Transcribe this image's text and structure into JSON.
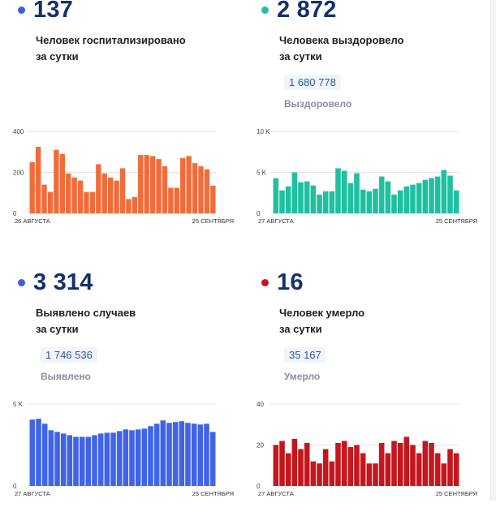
{
  "panels": [
    {
      "value": "137",
      "caption_line1": "Человек госпитализировано",
      "caption_line2": "за сутки",
      "total": "",
      "total_label": "",
      "dot_color": "#3f5ce0",
      "bar_color": "#f26b3a",
      "chart_data": {
        "type": "bar",
        "title": "",
        "yticks": [
          "400",
          "200",
          "0"
        ],
        "ylim": [
          0,
          400
        ],
        "x_start": "26 АВГУСТА",
        "x_end": "25 СЕНТЯБРЯ",
        "values": [
          250,
          325,
          140,
          105,
          310,
          290,
          195,
          175,
          160,
          105,
          105,
          240,
          195,
          175,
          160,
          220,
          70,
          80,
          285,
          285,
          280,
          265,
          230,
          125,
          125,
          270,
          280,
          245,
          230,
          215,
          135
        ]
      }
    },
    {
      "value": "2 872",
      "caption_line1": "Человека выздоровело",
      "caption_line2": "за сутки",
      "total": "1 680 778",
      "total_label": "Выздоровело",
      "dot_color": "#1fc0a0",
      "bar_color": "#1fc0a0",
      "chart_data": {
        "type": "bar",
        "title": "",
        "yticks": [
          "10 K",
          "5 K",
          "0"
        ],
        "ylim": [
          0,
          10000
        ],
        "x_start": "27 АВГУСТА",
        "x_end": "25 СЕНТЯБРЯ",
        "values": [
          4300,
          2800,
          3300,
          5000,
          3800,
          3900,
          3400,
          2300,
          2700,
          2700,
          5500,
          5200,
          3700,
          4900,
          2900,
          2700,
          3000,
          4500,
          3900,
          2300,
          2800,
          3300,
          3500,
          3700,
          4100,
          4300,
          4500,
          5300,
          4600,
          2800
        ]
      }
    },
    {
      "value": "3 314",
      "caption_line1": "Выявлено случаев",
      "caption_line2": "за сутки",
      "total": "1 746 536",
      "total_label": "Выявлено",
      "dot_color": "#3f5ce0",
      "bar_color": "#3f64e6",
      "chart_data": {
        "type": "bar",
        "title": "",
        "yticks": [
          "5 K",
          "0"
        ],
        "ylim": [
          0,
          5000
        ],
        "x_start": "27 АВГУСТА",
        "x_end": "25 СЕНТЯБРЯ",
        "values": [
          4050,
          4100,
          3800,
          3400,
          3300,
          3200,
          3100,
          3000,
          3000,
          3000,
          3100,
          3200,
          3250,
          3250,
          3350,
          3450,
          3400,
          3450,
          3500,
          3650,
          3800,
          4000,
          3850,
          3900,
          3950,
          3850,
          3800,
          3750,
          3800,
          3300
        ]
      }
    },
    {
      "value": "16",
      "caption_line1": "Человек умерло",
      "caption_line2": "за сутки",
      "total": "35 167",
      "total_label": "Умерло",
      "dot_color": "#c4161c",
      "bar_color": "#c4161c",
      "chart_data": {
        "type": "bar",
        "title": "",
        "yticks": [
          "40",
          "20",
          "0"
        ],
        "ylim": [
          0,
          40
        ],
        "x_start": "27 АВГУСТА",
        "x_end": "25 СЕНТЯБРЯ",
        "values": [
          20,
          22,
          16,
          23,
          18,
          21,
          12,
          11,
          18,
          12,
          21,
          22,
          19,
          20,
          16,
          11,
          11,
          21,
          16,
          22,
          21,
          24,
          20,
          16,
          22,
          21,
          16,
          11,
          18,
          16
        ]
      }
    }
  ]
}
